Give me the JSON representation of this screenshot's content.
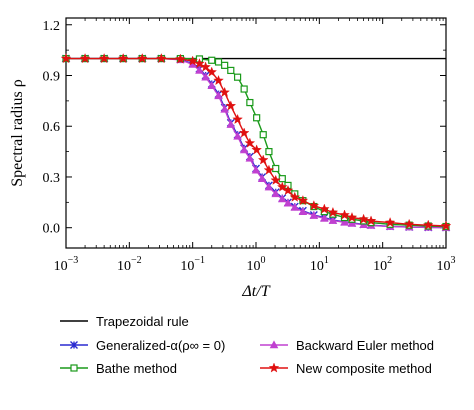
{
  "chart_data": {
    "type": "line",
    "x_scale": "log",
    "xlim": [
      0.001,
      1000
    ],
    "ylim": [
      -0.12,
      1.24
    ],
    "x_tick_labels": [
      {
        "base": "10",
        "exp": "−3"
      },
      {
        "base": "10",
        "exp": "−2"
      },
      {
        "base": "10",
        "exp": "−1"
      },
      {
        "base": "10",
        "exp": "0"
      },
      {
        "base": "10",
        "exp": "1"
      },
      {
        "base": "10",
        "exp": "2"
      },
      {
        "base": "10",
        "exp": "3"
      }
    ],
    "y_ticks": [
      0.0,
      0.3,
      0.6,
      0.9,
      1.2
    ],
    "y_tick_labels": [
      "0.0",
      "0.3",
      "0.6",
      "0.9",
      "1.2"
    ],
    "xlabel": "Δt/T",
    "ylabel": "Spectral radius ρ",
    "grid": false,
    "legend_placement": "bottom, two columns below plot",
    "series": [
      {
        "name": "Trapezoidal rule",
        "color": "#000000",
        "marker": "none",
        "x": [
          0.001,
          1000
        ],
        "y": [
          1.0,
          1.0
        ]
      },
      {
        "name": "Generalized-α(ρ∞ = 0)",
        "color": "#2a2ad0",
        "marker": "x",
        "x": [
          0.001,
          0.002,
          0.004,
          0.008,
          0.016,
          0.032,
          0.064,
          0.1,
          0.128,
          0.16,
          0.2,
          0.256,
          0.32,
          0.4,
          0.512,
          0.65,
          0.8,
          1.0,
          1.25,
          1.6,
          2.048,
          2.6,
          3.2,
          4.096,
          5.5,
          8.192,
          12,
          16.384,
          25,
          32.768,
          50,
          65.536,
          131.072,
          262.144,
          524.288,
          1000
        ],
        "y": [
          1.0,
          1.0,
          1.0,
          1.0,
          1.0,
          1.0,
          0.995,
          0.97,
          0.94,
          0.9,
          0.85,
          0.79,
          0.71,
          0.62,
          0.55,
          0.47,
          0.42,
          0.35,
          0.3,
          0.25,
          0.21,
          0.175,
          0.15,
          0.125,
          0.1,
          0.075,
          0.06,
          0.045,
          0.035,
          0.028,
          0.02,
          0.015,
          0.008,
          0.004,
          0.002,
          0.001
        ]
      },
      {
        "name": "Backward Euler method",
        "color": "#c040d0",
        "marker": "triangle",
        "x": [
          0.001,
          0.002,
          0.004,
          0.008,
          0.016,
          0.032,
          0.064,
          0.1,
          0.128,
          0.16,
          0.2,
          0.256,
          0.32,
          0.4,
          0.512,
          0.65,
          0.8,
          1.0,
          1.25,
          1.6,
          2.048,
          2.6,
          3.2,
          4.096,
          5.5,
          8.192,
          12,
          16.384,
          25,
          32.768,
          50,
          65.536,
          131.072,
          262.144,
          524.288,
          1000
        ],
        "y": [
          1.0,
          1.0,
          1.0,
          1.0,
          1.0,
          1.0,
          0.993,
          0.965,
          0.93,
          0.89,
          0.84,
          0.78,
          0.7,
          0.61,
          0.54,
          0.46,
          0.41,
          0.34,
          0.29,
          0.24,
          0.2,
          0.17,
          0.145,
          0.12,
          0.095,
          0.072,
          0.055,
          0.042,
          0.032,
          0.025,
          0.018,
          0.013,
          0.007,
          0.004,
          0.002,
          0.001
        ]
      },
      {
        "name": "Bathe method",
        "color": "#1a9a1a",
        "marker": "square",
        "x": [
          0.001,
          0.002,
          0.004,
          0.008,
          0.016,
          0.032,
          0.064,
          0.128,
          0.2,
          0.256,
          0.32,
          0.4,
          0.512,
          0.65,
          0.8,
          1.024,
          1.3,
          1.6,
          2.048,
          2.6,
          3.2,
          4.096,
          5.5,
          8.192,
          12,
          16.384,
          25,
          32.768,
          50,
          65.536,
          131.072,
          262.144,
          524.288,
          1000
        ],
        "y": [
          1.0,
          1.0,
          1.0,
          1.0,
          1.0,
          1.0,
          1.0,
          0.998,
          0.99,
          0.98,
          0.96,
          0.93,
          0.89,
          0.82,
          0.74,
          0.65,
          0.55,
          0.45,
          0.35,
          0.29,
          0.25,
          0.2,
          0.16,
          0.125,
          0.095,
          0.08,
          0.06,
          0.05,
          0.04,
          0.03,
          0.02,
          0.015,
          0.01,
          0.007
        ]
      },
      {
        "name": "New composite method",
        "color": "#e01010",
        "marker": "star",
        "x": [
          0.001,
          0.002,
          0.004,
          0.008,
          0.016,
          0.032,
          0.064,
          0.1,
          0.128,
          0.16,
          0.2,
          0.256,
          0.32,
          0.4,
          0.512,
          0.65,
          0.8,
          1.024,
          1.3,
          1.6,
          2.048,
          2.6,
          3.2,
          4.096,
          5.5,
          8.192,
          12,
          16.384,
          25,
          32.768,
          50,
          65.536,
          131.072,
          262.144,
          524.288,
          1000
        ],
        "y": [
          1.0,
          1.0,
          1.0,
          1.0,
          1.0,
          1.0,
          0.997,
          0.985,
          0.97,
          0.95,
          0.92,
          0.87,
          0.8,
          0.72,
          0.64,
          0.56,
          0.5,
          0.46,
          0.4,
          0.34,
          0.28,
          0.24,
          0.22,
          0.18,
          0.16,
          0.13,
          0.11,
          0.09,
          0.075,
          0.06,
          0.05,
          0.04,
          0.03,
          0.02,
          0.015,
          0.01
        ]
      }
    ]
  }
}
